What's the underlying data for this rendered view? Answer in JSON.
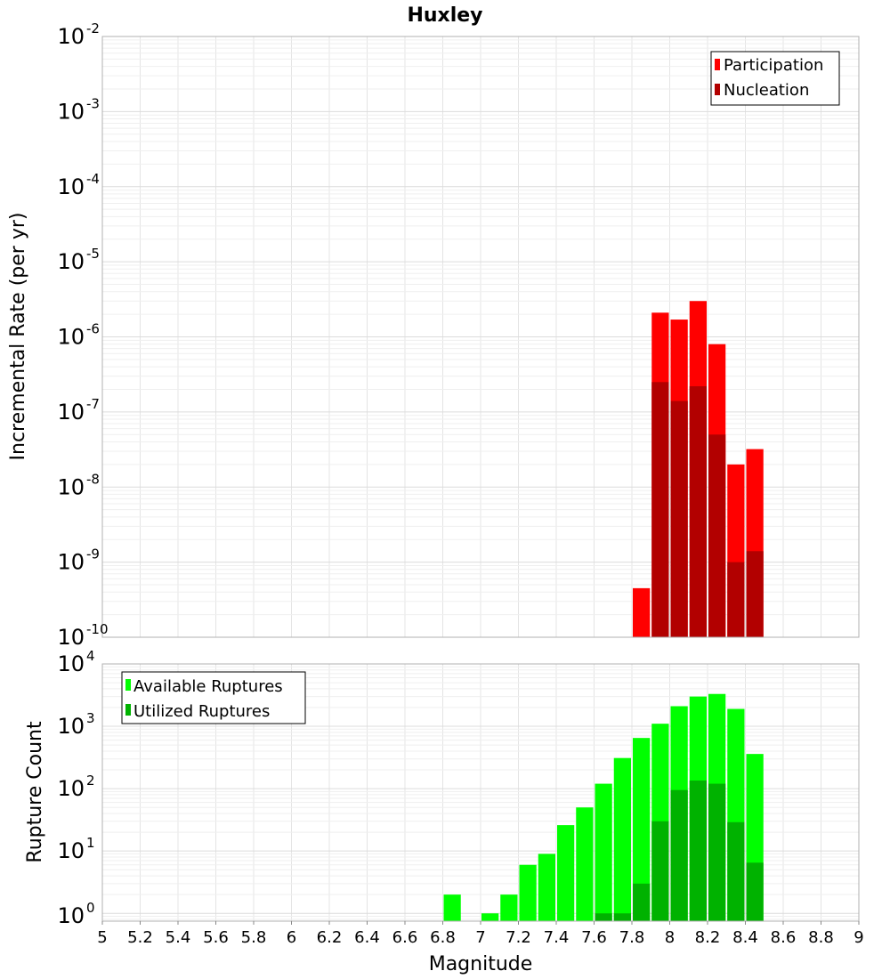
{
  "chart_data": [
    {
      "type": "bar",
      "title": "Huxley",
      "xlabel": "",
      "ylabel": "Incremental Rate (per yr)",
      "yscale": "log",
      "ylim": [
        1e-10,
        0.01
      ],
      "xlim": [
        5,
        9
      ],
      "grid": true,
      "legend_position": "top-right",
      "bin_width": 0.1,
      "y_ticks": [
        {
          "base": "10",
          "exp": "-2"
        },
        {
          "base": "10",
          "exp": "-3"
        },
        {
          "base": "10",
          "exp": "-4"
        },
        {
          "base": "10",
          "exp": "-5"
        },
        {
          "base": "10",
          "exp": "-6"
        },
        {
          "base": "10",
          "exp": "-7"
        },
        {
          "base": "10",
          "exp": "-8"
        },
        {
          "base": "10",
          "exp": "-9"
        },
        {
          "base": "10",
          "exp": "-10"
        }
      ],
      "series": [
        {
          "name": "Participation",
          "color": "#ff0000",
          "x": [
            7.85,
            7.95,
            8.05,
            8.15,
            8.25,
            8.35,
            8.45
          ],
          "values": [
            4.5e-10,
            2.1e-06,
            1.7e-06,
            3e-06,
            8e-07,
            2e-08,
            3.2e-08
          ]
        },
        {
          "name": "Nucleation",
          "color": "#b20000",
          "x": [
            7.85,
            7.95,
            8.05,
            8.15,
            8.25,
            8.35,
            8.45
          ],
          "values": [
            null,
            2.5e-07,
            1.4e-07,
            2.2e-07,
            5e-08,
            1e-09,
            1.4e-09
          ]
        }
      ]
    },
    {
      "type": "bar",
      "title": "",
      "xlabel": "Magnitude",
      "ylabel": "Rupture Count",
      "yscale": "log",
      "ylim": [
        0.75,
        10000
      ],
      "xlim": [
        5,
        9
      ],
      "grid": true,
      "legend_position": "top-left",
      "bin_width": 0.1,
      "x_ticks": [
        "5",
        "5.2",
        "5.4",
        "5.6",
        "5.8",
        "6",
        "6.2",
        "6.4",
        "6.6",
        "6.8",
        "7",
        "7.2",
        "7.4",
        "7.6",
        "7.8",
        "8",
        "8.2",
        "8.4",
        "8.6",
        "8.8",
        "9"
      ],
      "y_ticks": [
        {
          "base": "10",
          "exp": "4"
        },
        {
          "base": "10",
          "exp": "3"
        },
        {
          "base": "10",
          "exp": "2"
        },
        {
          "base": "10",
          "exp": "1"
        },
        {
          "base": "10",
          "exp": "0"
        }
      ],
      "series": [
        {
          "name": "Available Ruptures",
          "color": "#00ff00",
          "x": [
            6.85,
            7.05,
            7.15,
            7.25,
            7.35,
            7.45,
            7.55,
            7.65,
            7.75,
            7.85,
            7.95,
            8.05,
            8.15,
            8.25,
            8.35,
            8.45
          ],
          "values": [
            2,
            1,
            2,
            6,
            9,
            26,
            50,
            120,
            310,
            650,
            1100,
            2100,
            3000,
            3300,
            1900,
            360
          ]
        },
        {
          "name": "Utilized Ruptures",
          "color": "#00b200",
          "x": [
            7.65,
            7.75,
            7.85,
            7.95,
            8.05,
            8.15,
            8.25,
            8.35,
            8.45
          ],
          "values": [
            1,
            1,
            3,
            30,
            95,
            135,
            120,
            29,
            6.5
          ]
        }
      ]
    }
  ]
}
